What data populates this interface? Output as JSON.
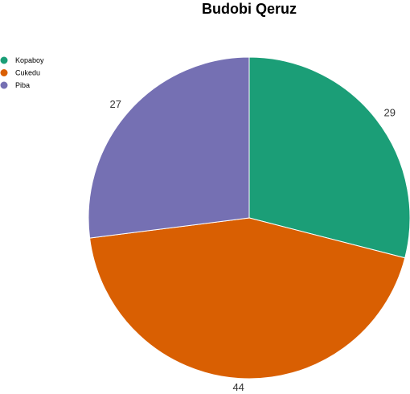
{
  "chart_data": {
    "type": "pie",
    "title": "Budobi Qeruz",
    "categories": [
      "Kopaboy",
      "Cukedu",
      "Piba"
    ],
    "values": [
      29,
      44,
      27
    ],
    "labels": [
      "29",
      "44",
      "27"
    ],
    "colors": [
      "#1b9e77",
      "#d95f02",
      "#7570b3"
    ],
    "start_angle_deg": 0,
    "direction": "clockwise",
    "legend": {
      "placement": "top-left",
      "entries": [
        "Kopaboy",
        "Cukedu",
        "Piba"
      ]
    }
  }
}
